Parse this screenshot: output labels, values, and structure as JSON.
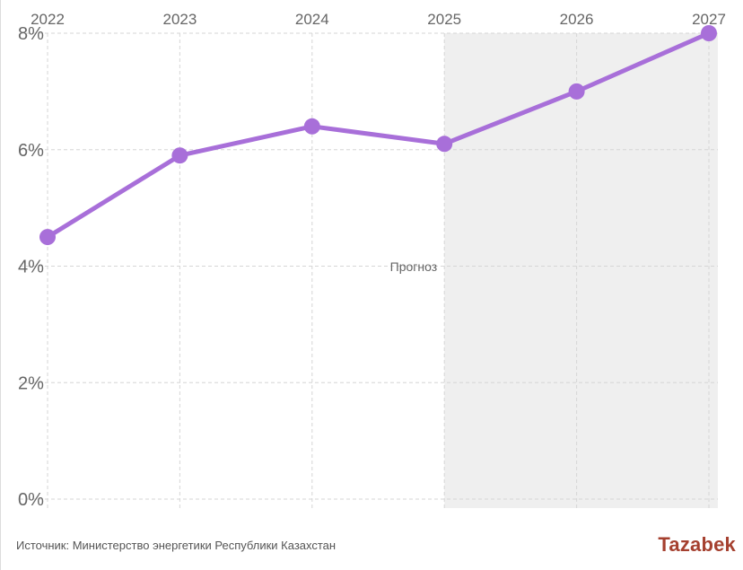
{
  "chart_data": {
    "type": "line",
    "x": [
      "2022",
      "2023",
      "2024",
      "2025",
      "2026",
      "2027"
    ],
    "series": [
      {
        "values": [
          4.5,
          5.9,
          6.4,
          6.1,
          7.0,
          8.0
        ]
      }
    ],
    "y_ticks": [
      "0%",
      "2%",
      "4%",
      "6%",
      "8%"
    ],
    "ylim": [
      0,
      8
    ],
    "forecast": {
      "label": "Прогноз",
      "from": "2025",
      "to": "2027"
    },
    "grid": true,
    "x_axis_position": "top",
    "colors": {
      "line": "#a86fd9",
      "forecast_bg": "#efefef",
      "grid": "#d6d6d6",
      "text": "#666666"
    }
  },
  "footer": {
    "source": "Источник: Министерство энергетики Республики Казахстан",
    "brand": "Tazabek"
  }
}
